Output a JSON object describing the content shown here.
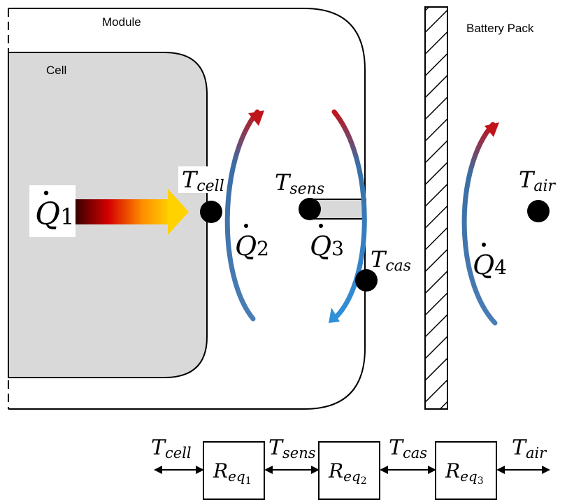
{
  "labels": {
    "module": "Module",
    "cell": "Cell",
    "battery_pack": "Battery Pack"
  },
  "temperatures": {
    "t_cell": {
      "base": "T",
      "sub": "cell"
    },
    "t_sens": {
      "base": "T",
      "sub": "sens"
    },
    "t_cas": {
      "base": "T",
      "sub": "cas"
    },
    "t_air": {
      "base": "T",
      "sub": "air"
    }
  },
  "heat_flows": {
    "q1": {
      "base": "Q",
      "sub": "1"
    },
    "q2": {
      "base": "Q",
      "sub": "2"
    },
    "q3": {
      "base": "Q",
      "sub": "3"
    },
    "q4": {
      "base": "Q",
      "sub": "4"
    }
  },
  "network": {
    "nodes": [
      {
        "base": "T",
        "sub": "cell"
      },
      {
        "base": "T",
        "sub": "sens"
      },
      {
        "base": "T",
        "sub": "cas"
      },
      {
        "base": "T",
        "sub": "air"
      }
    ],
    "resistors": [
      {
        "base": "R",
        "sub": "eq",
        "subsub": "1"
      },
      {
        "base": "R",
        "sub": "eq",
        "subsub": "2"
      },
      {
        "base": "R",
        "sub": "eq",
        "subsub": "3"
      }
    ]
  },
  "colors": {
    "arc_blue": "#3a6ea5",
    "arc_red": "#c0141c",
    "cell_fill": "#d9d9d9",
    "line": "#000000"
  }
}
